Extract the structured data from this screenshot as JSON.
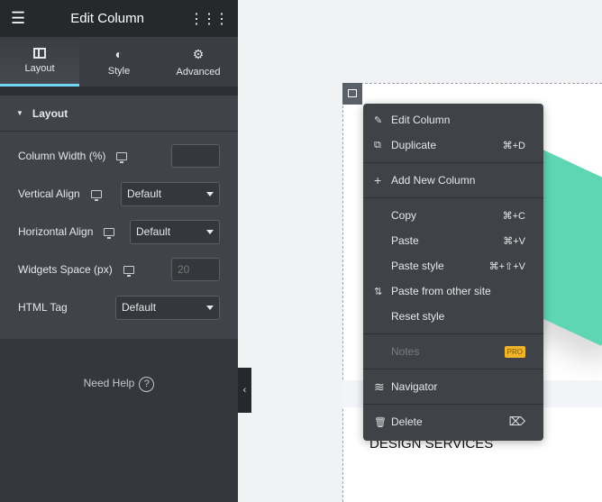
{
  "header": {
    "title": "Edit Column",
    "menu_icon": "hamburger-icon",
    "apps_icon": "grid-icon"
  },
  "tabs": [
    {
      "label": "Layout",
      "icon": "columns-icon",
      "active": true
    },
    {
      "label": "Style",
      "icon": "contrast-icon"
    },
    {
      "label": "Advanced",
      "icon": "gear-icon"
    }
  ],
  "section": {
    "title": "Layout"
  },
  "controls": [
    {
      "label": "Column Width (%)",
      "value": ""
    },
    {
      "label": "Vertical Align",
      "value": "Default"
    },
    {
      "label": "Horizontal Align",
      "value": "Default"
    },
    {
      "label": "Widgets Space (px)",
      "placeholder": "20"
    },
    {
      "label": "HTML Tag",
      "value": "Default"
    }
  ],
  "help": {
    "label": "Need Help",
    "icon": "?"
  },
  "canvas": {
    "heading": "DESIGN SERVICES"
  },
  "menu": [
    {
      "label": "Edit Column",
      "icon": "✎",
      "shortcut": ""
    },
    {
      "label": "Duplicate",
      "icon": "⧉",
      "shortcut": "⌘+D"
    },
    {
      "label": "Add New Column",
      "icon": "+",
      "shortcut": ""
    },
    {
      "label": "Copy",
      "shortcut": "⌘+C"
    },
    {
      "label": "Paste",
      "shortcut": "⌘+V"
    },
    {
      "label": "Paste style",
      "shortcut": "⌘+⇧+V"
    },
    {
      "label": "Paste from other site",
      "icon": "⇅"
    },
    {
      "label": "Reset style"
    },
    {
      "label": "Notes",
      "badge": "PRO"
    },
    {
      "label": "Navigator",
      "icon": "≋"
    },
    {
      "label": "Delete",
      "icon": "🗑",
      "shortcut": "⌦"
    }
  ]
}
